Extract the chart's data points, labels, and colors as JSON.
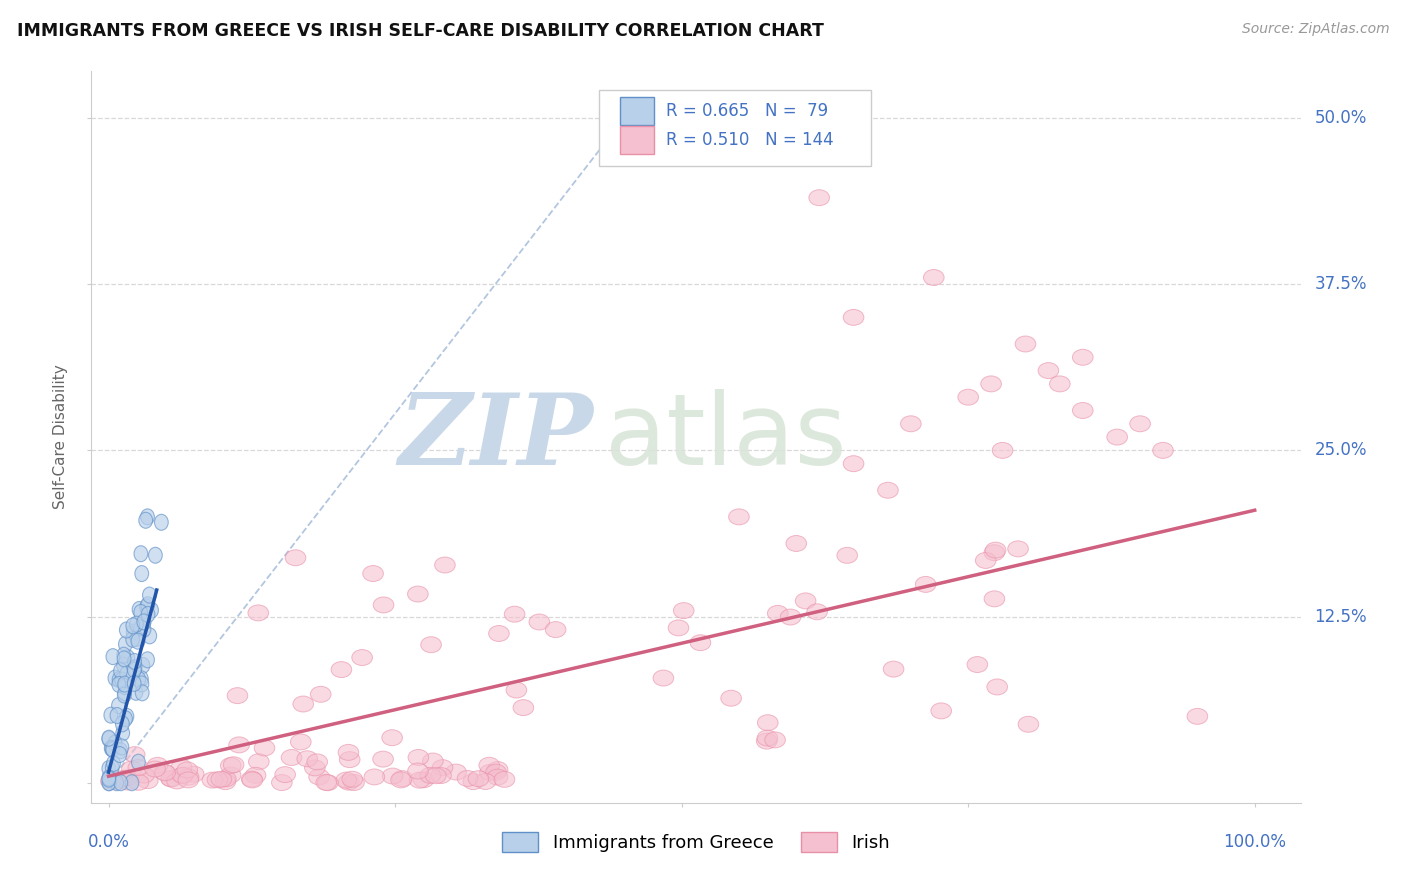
{
  "title": "IMMIGRANTS FROM GREECE VS IRISH SELF-CARE DISABILITY CORRELATION CHART",
  "source": "Source: ZipAtlas.com",
  "ylabel": "Self-Care Disability",
  "ytick_vals": [
    0.0,
    0.125,
    0.25,
    0.375,
    0.5
  ],
  "ytick_labels": [
    "",
    "12.5%",
    "25.0%",
    "37.5%",
    "50.0%"
  ],
  "xlim": [
    -0.015,
    1.04
  ],
  "ylim": [
    -0.015,
    0.535
  ],
  "legend_r_blue": "0.665",
  "legend_n_blue": "79",
  "legend_r_pink": "0.510",
  "legend_n_pink": "144",
  "blue_fill": "#b8d0ea",
  "blue_edge": "#6090c8",
  "blue_line": "#2255aa",
  "pink_fill": "#f5c0d0",
  "pink_edge": "#e890a8",
  "pink_line": "#d06080",
  "diag_color": "#a0b8d8",
  "grid_color": "#d8d8d8",
  "spine_color": "#cccccc",
  "label_color": "#4472c4",
  "title_color": "#111111",
  "source_color": "#999999",
  "ylabel_color": "#666666",
  "zip_color": "#c8d8e8",
  "atlas_color": "#d8e4d8",
  "bottom_legend_label_blue": "Immigrants from Greece",
  "bottom_legend_label_pink": "Irish"
}
